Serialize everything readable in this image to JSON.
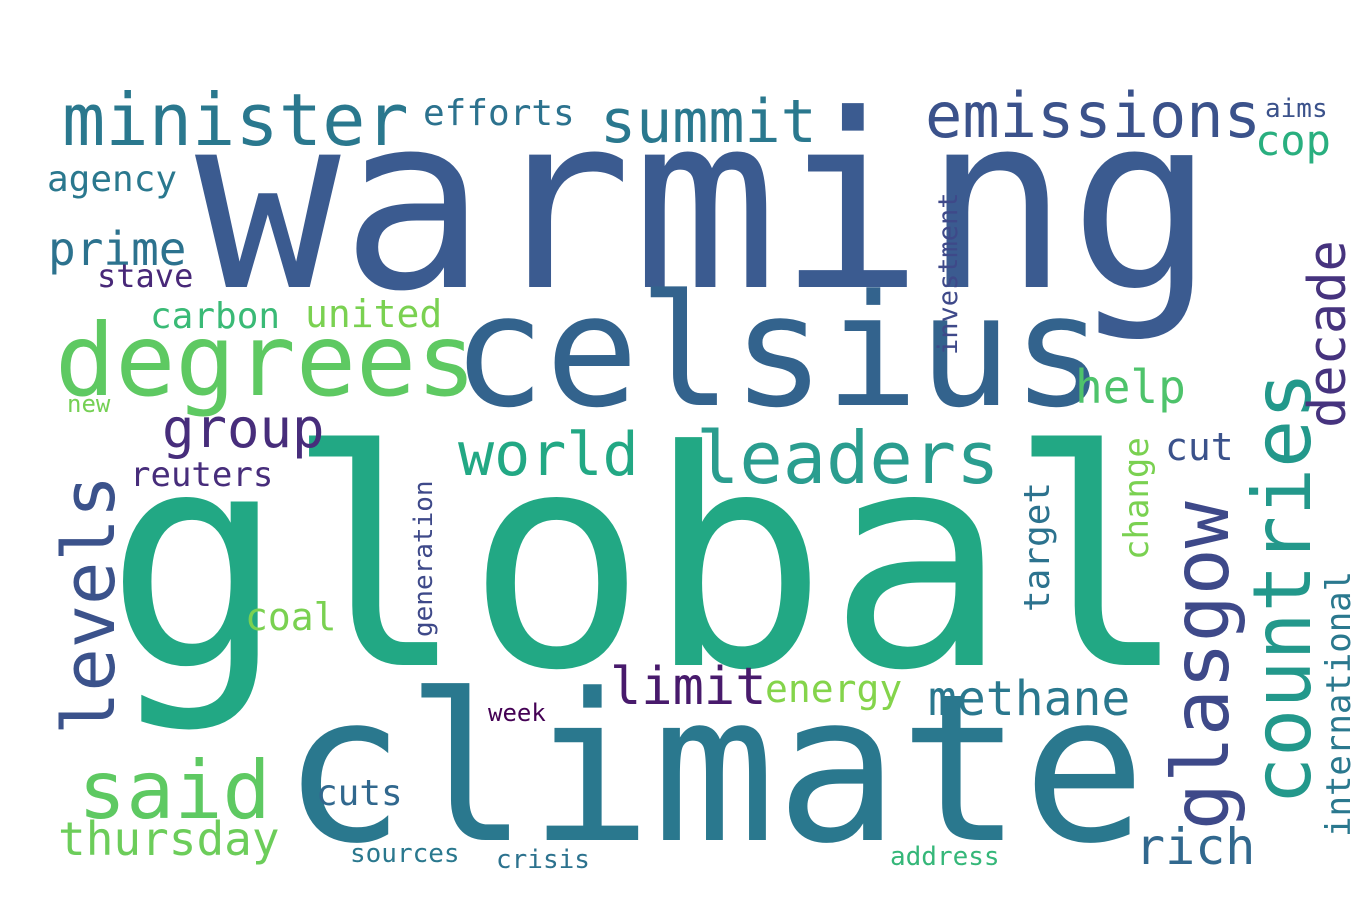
{
  "words": [
    {
      "text": "warming",
      "color": "#3b5b90"
    },
    {
      "text": "global",
      "color": "#22a884"
    },
    {
      "text": "climate",
      "color": "#2a788e"
    },
    {
      "text": "celsius",
      "color": "#33638d"
    },
    {
      "text": "degrees",
      "color": "#5ec962"
    },
    {
      "text": "minister",
      "color": "#2a788e"
    },
    {
      "text": "emissions",
      "color": "#3b528b"
    },
    {
      "text": "summit",
      "color": "#2a788e"
    },
    {
      "text": "leaders",
      "color": "#2a9d8f"
    },
    {
      "text": "countries",
      "color": "#23988b"
    },
    {
      "text": "glasgow",
      "color": "#3e4989"
    },
    {
      "text": "levels",
      "color": "#3b528b"
    },
    {
      "text": "said",
      "color": "#5ec962"
    },
    {
      "text": "world",
      "color": "#22a884"
    },
    {
      "text": "methane",
      "color": "#2a788e"
    },
    {
      "text": "group",
      "color": "#472d7b"
    },
    {
      "text": "decade",
      "color": "#46337e"
    },
    {
      "text": "help",
      "color": "#4ec36b"
    },
    {
      "text": "prime",
      "color": "#2c728e"
    },
    {
      "text": "limit",
      "color": "#481a6c"
    },
    {
      "text": "rich",
      "color": "#31688e"
    },
    {
      "text": "thursday",
      "color": "#6ccd5a"
    },
    {
      "text": "cop",
      "color": "#29af7f"
    },
    {
      "text": "efforts",
      "color": "#2c728e"
    },
    {
      "text": "agency",
      "color": "#2a788e"
    },
    {
      "text": "carbon",
      "color": "#3aba76"
    },
    {
      "text": "united",
      "color": "#7ad151"
    },
    {
      "text": "stave",
      "color": "#482878"
    },
    {
      "text": "reuters",
      "color": "#472d7b"
    },
    {
      "text": "coal",
      "color": "#7ad151"
    },
    {
      "text": "energy",
      "color": "#84d44b"
    },
    {
      "text": "cut",
      "color": "#3b528b"
    },
    {
      "text": "change",
      "color": "#7ad151"
    },
    {
      "text": "target",
      "color": "#2c728e"
    },
    {
      "text": "cuts",
      "color": "#31688e"
    },
    {
      "text": "international",
      "color": "#2a788e"
    },
    {
      "text": "investment",
      "color": "#3e4989"
    },
    {
      "text": "generation",
      "color": "#3e4989"
    },
    {
      "text": "aims",
      "color": "#3b528b"
    },
    {
      "text": "new",
      "color": "#75d054"
    },
    {
      "text": "week",
      "color": "#440154"
    },
    {
      "text": "sources",
      "color": "#2a788e"
    },
    {
      "text": "crisis",
      "color": "#2c728e"
    },
    {
      "text": "address",
      "color": "#35b779"
    }
  ]
}
